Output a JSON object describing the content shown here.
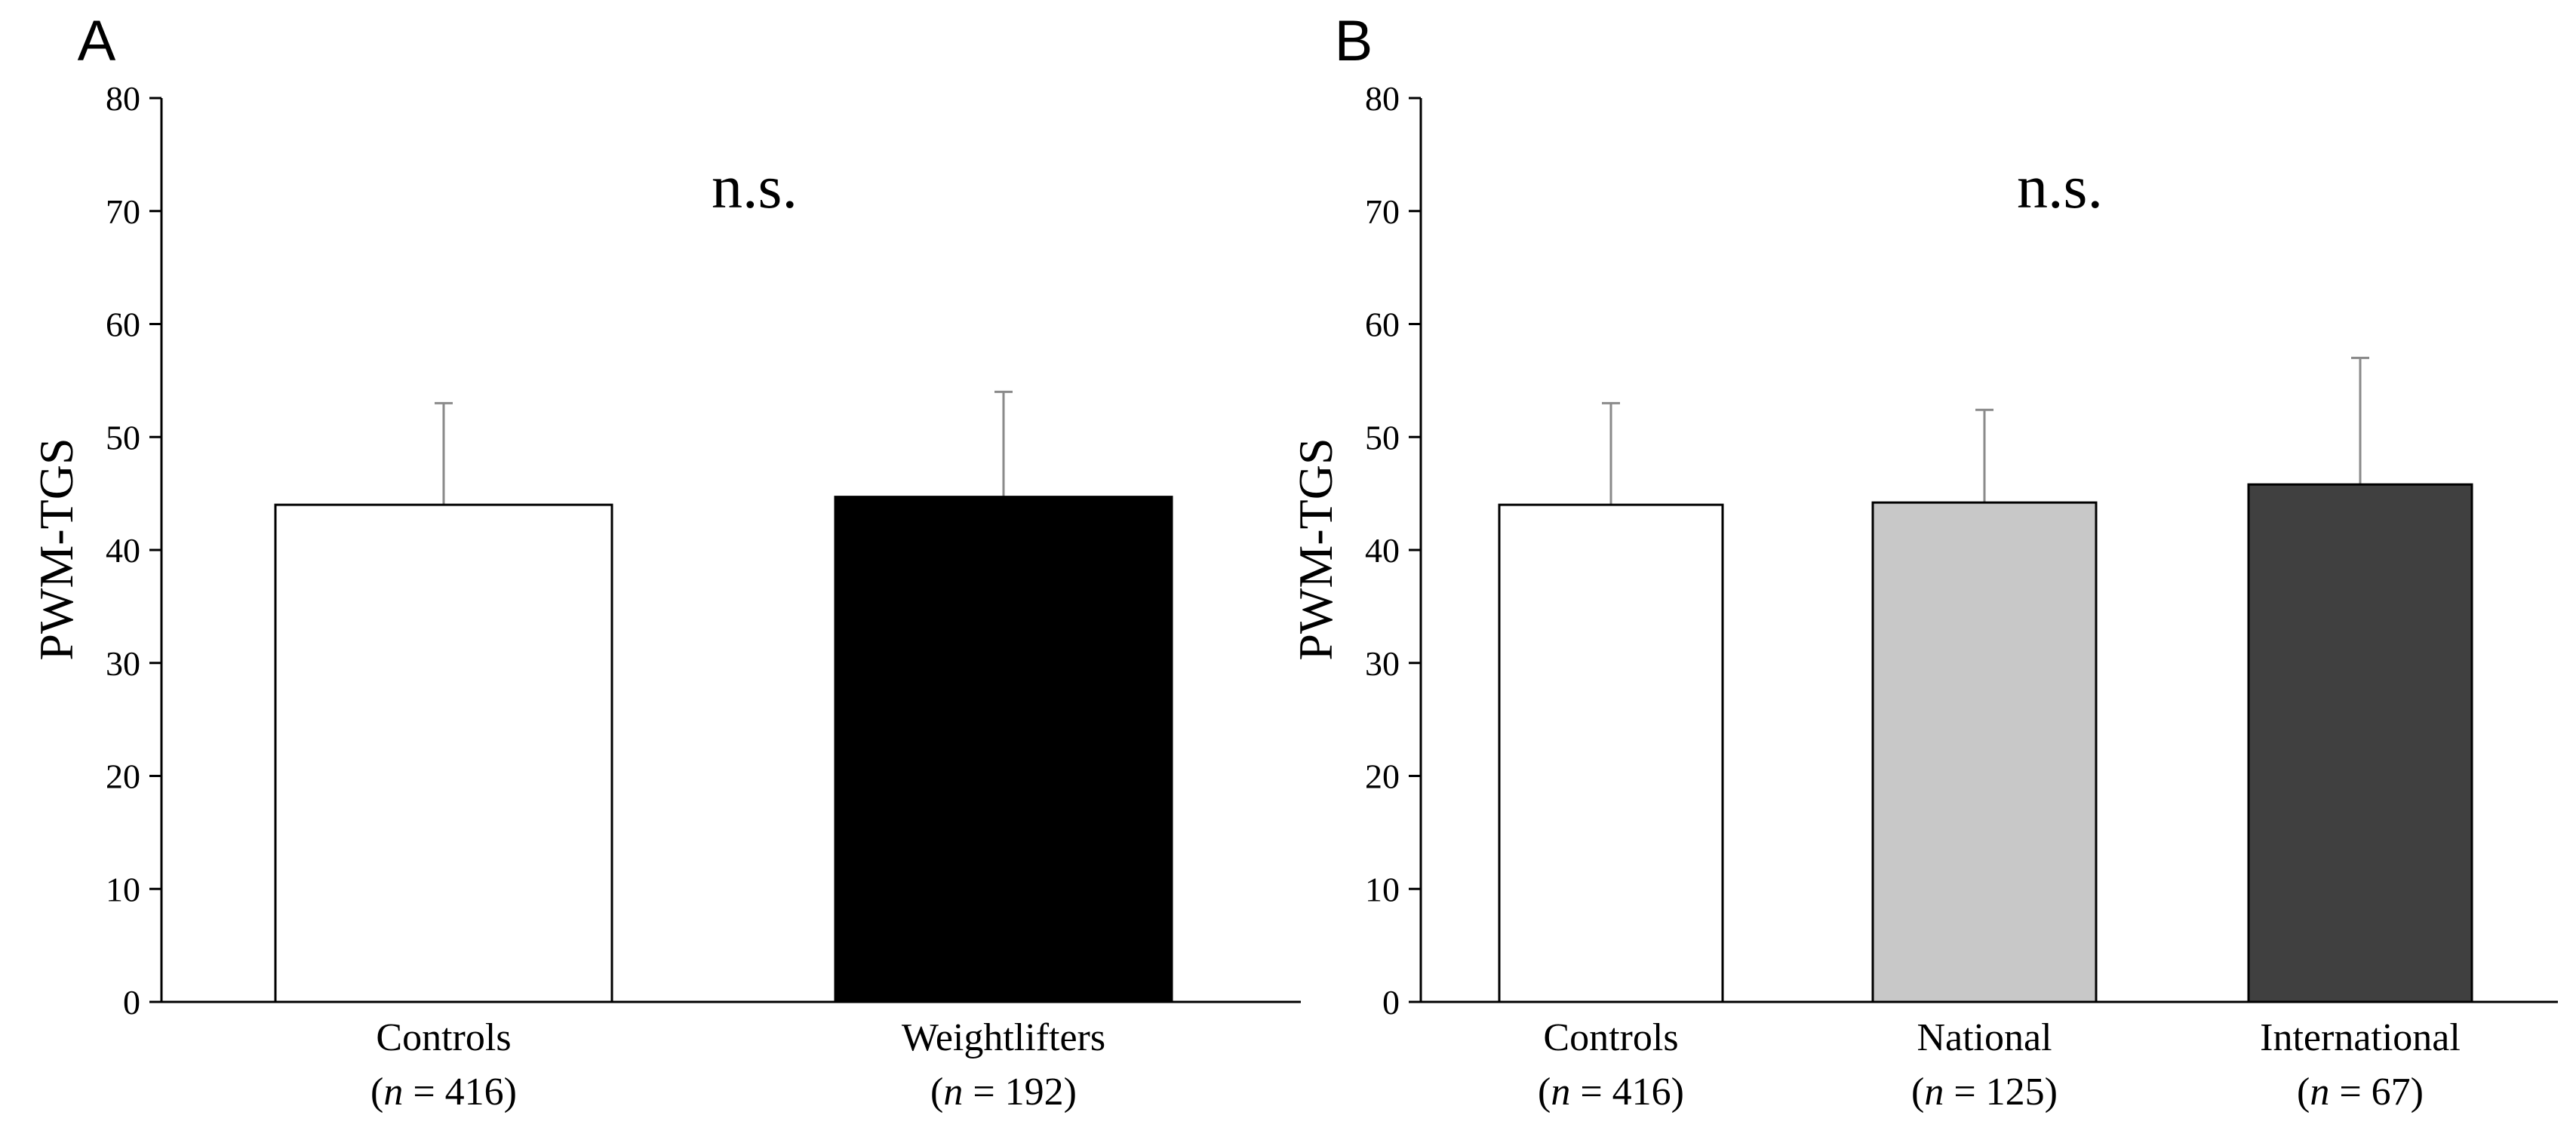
{
  "chart_data": [
    {
      "type": "bar",
      "panel": "A",
      "ylabel": "PWM-TGS",
      "ylim": [
        0,
        80
      ],
      "yticks": [
        "0",
        "10",
        "20",
        "30",
        "40",
        "50",
        "60",
        "70",
        "80"
      ],
      "annotation": "n.s.",
      "grid": false,
      "categories": [
        {
          "name": "Controls",
          "n_prefix": "(",
          "n_symbol": "n",
          "n_suffix": " = 416)",
          "value": 44,
          "error": 9,
          "color": "#ffffff"
        },
        {
          "name": "Weightlifters",
          "n_prefix": "(",
          "n_symbol": "n",
          "n_suffix": " = 192)",
          "value": 44.7,
          "error": 9.3,
          "color": "#000000"
        }
      ]
    },
    {
      "type": "bar",
      "panel": "B",
      "ylabel": "PWM-TGS",
      "ylim": [
        0,
        80
      ],
      "yticks": [
        "0",
        "10",
        "20",
        "30",
        "40",
        "50",
        "60",
        "70",
        "80"
      ],
      "annotation": "n.s.",
      "grid": false,
      "categories": [
        {
          "name": "Controls",
          "n_prefix": "(",
          "n_symbol": "n",
          "n_suffix": " = 416)",
          "value": 44,
          "error": 9,
          "color": "#ffffff"
        },
        {
          "name": "National",
          "n_prefix": "(",
          "n_symbol": "n",
          "n_suffix": " = 125)",
          "value": 44.2,
          "error": 8.2,
          "color": "#c8c8c8"
        },
        {
          "name": "International",
          "n_prefix": "(",
          "n_symbol": "n",
          "n_suffix": " = 67)",
          "value": 45.8,
          "error": 11.2,
          "color": "#404040"
        }
      ]
    }
  ]
}
